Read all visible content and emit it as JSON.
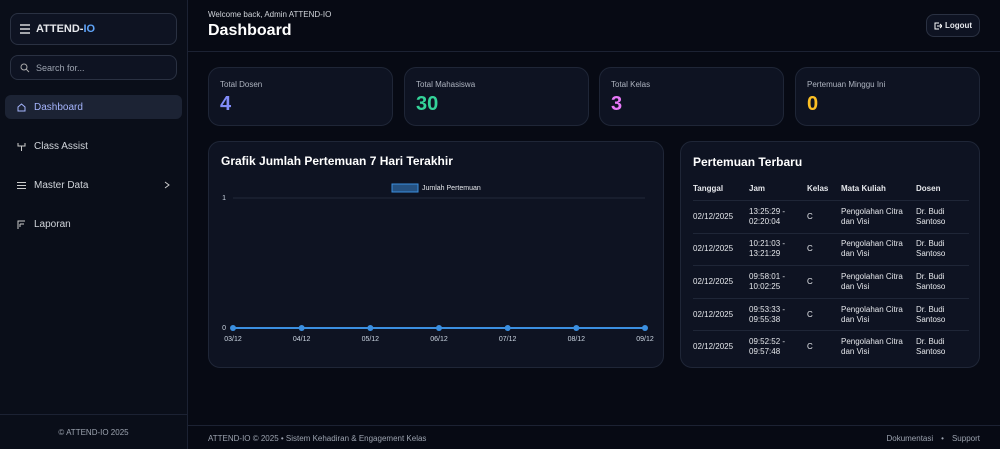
{
  "sidebar": {
    "logo": {
      "prefix": "ATTEND-",
      "accent": "IO"
    },
    "search_placeholder": "Search for...",
    "nav": [
      "Dashboard",
      "Class Assist",
      "Master Data",
      "Laporan"
    ],
    "footer": "© ATTEND-IO 2025"
  },
  "header": {
    "welcome": "Welcome back, Admin ATTEND-IO",
    "title": "Dashboard",
    "logout": "Logout"
  },
  "stats": [
    {
      "label": "Total Dosen",
      "value": 4,
      "color": "#818cf8"
    },
    {
      "label": "Total Mahasiswa",
      "value": 30,
      "color": "#34d399"
    },
    {
      "label": "Total Kelas",
      "value": 3,
      "color": "#e879f9"
    },
    {
      "label": "Pertemuan Minggu Ini",
      "value": 0,
      "color": "#fbbf24"
    }
  ],
  "chart_data": {
    "type": "line",
    "title": "Grafik Jumlah Pertemuan 7 Hari Terakhir",
    "categories": [
      "03/12",
      "04/12",
      "05/12",
      "06/12",
      "07/12",
      "08/12",
      "09/12"
    ],
    "series": [
      {
        "name": "Jumlah Pertemuan",
        "color": "#3b8fe0",
        "values": [
          0,
          0,
          0,
          0,
          0,
          0,
          0
        ]
      }
    ],
    "ylim": [
      0,
      1
    ],
    "yticks": [
      0,
      1
    ],
    "grid": true
  },
  "table": {
    "title": "Pertemuan Terbaru",
    "columns": [
      "Tanggal",
      "Jam",
      "Kelas",
      "Mata Kuliah",
      "Dosen"
    ],
    "rows": [
      [
        "02/12/2025",
        "13:25:29 - 02:20:04",
        "C",
        "Pengolahan Citra dan Visi",
        "Dr. Budi Santoso"
      ],
      [
        "02/12/2025",
        "10:21:03 - 13:21:29",
        "C",
        "Pengolahan Citra dan Visi",
        "Dr. Budi Santoso"
      ],
      [
        "02/12/2025",
        "09:58:01 - 10:02:25",
        "C",
        "Pengolahan Citra dan Visi",
        "Dr. Budi Santoso"
      ],
      [
        "02/12/2025",
        "09:53:33 - 09:55:38",
        "C",
        "Pengolahan Citra dan Visi",
        "Dr. Budi Santoso"
      ],
      [
        "02/12/2025",
        "09:52:52 - 09:57:48",
        "C",
        "Pengolahan Citra dan Visi",
        "Dr. Budi Santoso"
      ]
    ]
  },
  "footer": {
    "text": "ATTEND-IO © 2025 • Sistem Kehadiran & Engagement Kelas",
    "links": [
      "Dokumentasi",
      "Support"
    ],
    "separator": "•"
  }
}
